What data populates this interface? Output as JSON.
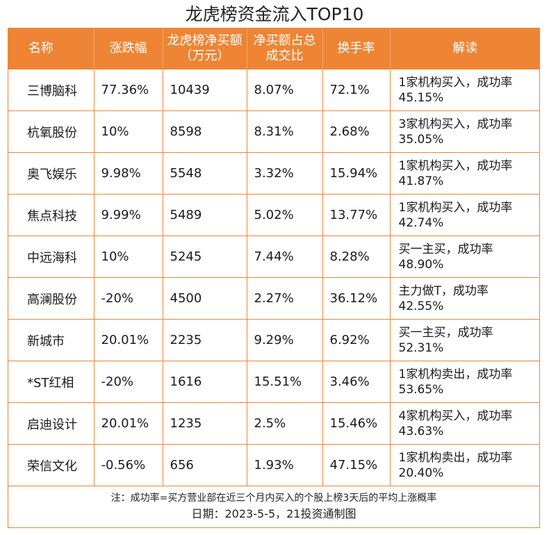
{
  "chart_data": {
    "type": "table",
    "title": "龙虎榜资金流入TOP10",
    "columns": [
      "名称",
      "涨跌幅",
      "龙虎榜净买额（万元）",
      "净买额占总成交比",
      "换手率",
      "解读"
    ],
    "rows": [
      [
        "三博脑科",
        "77.36%",
        "10439",
        "8.07%",
        "72.1%",
        "1家机构买入，成功率45.15%"
      ],
      [
        "杭氧股份",
        "10%",
        "8598",
        "8.31%",
        "2.68%",
        "3家机构买入，成功率35.05%"
      ],
      [
        "奥飞娱乐",
        "9.98%",
        "5548",
        "3.32%",
        "15.94%",
        "1家机构买入，成功率41.87%"
      ],
      [
        "焦点科技",
        "9.99%",
        "5489",
        "5.02%",
        "13.77%",
        "1家机构买入，成功率42.74%"
      ],
      [
        "中远海科",
        "10%",
        "5245",
        "7.44%",
        "8.28%",
        "买一主买，成功率48.90%"
      ],
      [
        "高澜股份",
        "-20%",
        "4500",
        "2.27%",
        "36.12%",
        "主力做T，成功率42.55%"
      ],
      [
        "新城市",
        "20.01%",
        "2235",
        "9.29%",
        "6.92%",
        "买一主买，成功率52.31%"
      ],
      [
        "*ST红相",
        "-20%",
        "1616",
        "15.51%",
        "3.46%",
        "1家机构卖出，成功率53.65%"
      ],
      [
        "启迪设计",
        "20.01%",
        "1235",
        "2.5%",
        "15.46%",
        "4家机构买入，成功率43.63%"
      ],
      [
        "荣信文化",
        "-0.56%",
        "656",
        "1.93%",
        "47.15%",
        "1家机构卖出，成功率20.40%"
      ]
    ],
    "note": "注：成功率=买方营业部在近三个月内买入的个股上榜3天后的平均上涨概率",
    "source": "日期：2023-5-5，21投资通制图"
  },
  "colors": {
    "accent": "#ee8434",
    "header_text": "#ffffff"
  }
}
